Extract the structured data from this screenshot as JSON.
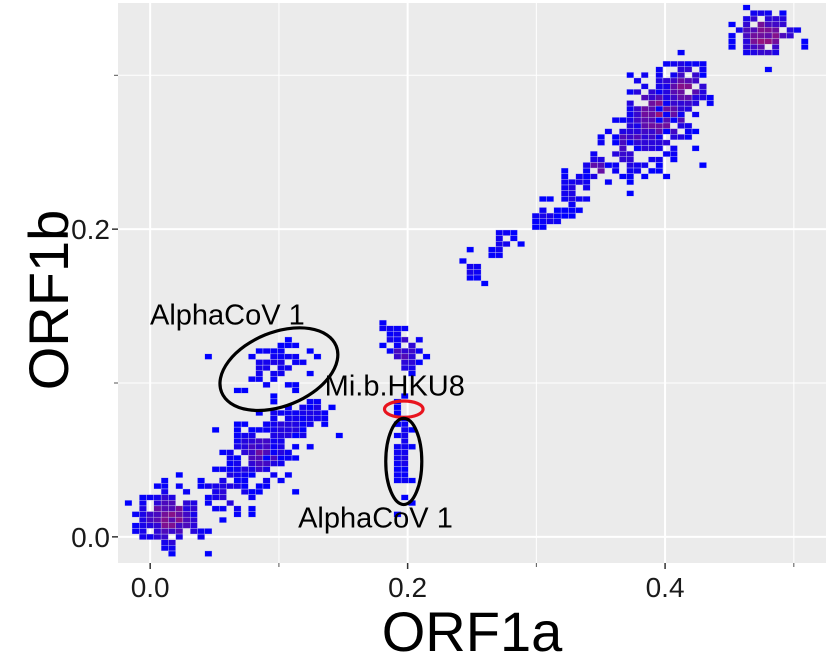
{
  "chart_data": {
    "type": "heatmap",
    "title": "",
    "xlabel": "ORF1a",
    "ylabel": "ORF1b",
    "xlim": [
      -0.025,
      0.525
    ],
    "ylim": [
      -0.017,
      0.347
    ],
    "x_ticks": [
      {
        "value": 0.0,
        "label": "0.0"
      },
      {
        "value": 0.2,
        "label": "0.2"
      },
      {
        "value": 0.4,
        "label": "0.4"
      }
    ],
    "y_ticks": [
      {
        "value": 0.0,
        "label": "0.0"
      },
      {
        "value": 0.2,
        "label": "0.2"
      }
    ],
    "x_minor": [
      0.1,
      0.3,
      0.5
    ],
    "y_minor": [
      0.1,
      0.3
    ],
    "grid": true,
    "legend": "none",
    "colors": {
      "panel": "#ebebeb",
      "grid": "#ffffff",
      "low": "#0000ff",
      "high": "#ff2020",
      "outline_black": "#000000",
      "outline_red": "#e8141e"
    },
    "clusters": [
      {
        "cx": 0.016,
        "cy": 0.012,
        "sx": 0.014,
        "sy": 0.01,
        "n": 70,
        "intensity": 0.5
      },
      {
        "cx": 0.06,
        "cy": 0.03,
        "sx": 0.01,
        "sy": 0.008,
        "n": 25,
        "intensity": 0.2
      },
      {
        "cx": 0.085,
        "cy": 0.054,
        "sx": 0.012,
        "sy": 0.01,
        "n": 60,
        "intensity": 0.35
      },
      {
        "cx": 0.105,
        "cy": 0.07,
        "sx": 0.012,
        "sy": 0.009,
        "n": 30,
        "intensity": 0.15
      },
      {
        "cx": 0.125,
        "cy": 0.08,
        "sx": 0.006,
        "sy": 0.005,
        "n": 14,
        "intensity": 0.15
      },
      {
        "cx": 0.095,
        "cy": 0.11,
        "sx": 0.018,
        "sy": 0.008,
        "n": 24,
        "intensity": 0.1
      },
      {
        "cx": 0.196,
        "cy": 0.055,
        "sx": 0.003,
        "sy": 0.017,
        "n": 28,
        "intensity": 0.1
      },
      {
        "cx": 0.197,
        "cy": 0.12,
        "sx": 0.006,
        "sy": 0.008,
        "n": 22,
        "intensity": 0.3
      },
      {
        "cx": 0.187,
        "cy": 0.13,
        "sx": 0.004,
        "sy": 0.006,
        "n": 6,
        "intensity": 0.1
      },
      {
        "cx": 0.252,
        "cy": 0.174,
        "sx": 0.005,
        "sy": 0.004,
        "n": 10,
        "intensity": 0.1
      },
      {
        "cx": 0.273,
        "cy": 0.19,
        "sx": 0.006,
        "sy": 0.005,
        "n": 9,
        "intensity": 0.1
      },
      {
        "cx": 0.308,
        "cy": 0.209,
        "sx": 0.006,
        "sy": 0.004,
        "n": 10,
        "intensity": 0.1
      },
      {
        "cx": 0.332,
        "cy": 0.226,
        "sx": 0.007,
        "sy": 0.007,
        "n": 18,
        "intensity": 0.15
      },
      {
        "cx": 0.35,
        "cy": 0.24,
        "sx": 0.006,
        "sy": 0.005,
        "n": 14,
        "intensity": 0.5
      },
      {
        "cx": 0.375,
        "cy": 0.255,
        "sx": 0.014,
        "sy": 0.01,
        "n": 40,
        "intensity": 0.3
      },
      {
        "cx": 0.395,
        "cy": 0.275,
        "sx": 0.014,
        "sy": 0.014,
        "n": 70,
        "intensity": 0.5
      },
      {
        "cx": 0.415,
        "cy": 0.292,
        "sx": 0.01,
        "sy": 0.01,
        "n": 40,
        "intensity": 0.45
      },
      {
        "cx": 0.478,
        "cy": 0.326,
        "sx": 0.012,
        "sy": 0.008,
        "n": 45,
        "intensity": 0.6
      }
    ],
    "annotations": [
      {
        "text": "AlphaCoV 1",
        "x": 0.06,
        "y": 0.138
      },
      {
        "text": "Mi.b.HKU8",
        "x": 0.19,
        "y": 0.092
      },
      {
        "text": "AlphaCoV 1",
        "x": 0.175,
        "y": 0.006
      }
    ],
    "ellipses": [
      {
        "cx": 0.1,
        "cy": 0.109,
        "rx": 0.048,
        "ry": 0.024,
        "angle_deg": -22,
        "color": "#000000"
      },
      {
        "cx": 0.197,
        "cy": 0.083,
        "rx": 0.015,
        "ry": 0.0053,
        "angle_deg": 0,
        "color": "#e8141e"
      },
      {
        "cx": 0.197,
        "cy": 0.049,
        "rx": 0.014,
        "ry": 0.028,
        "angle_deg": 0,
        "color": "#000000"
      }
    ]
  }
}
